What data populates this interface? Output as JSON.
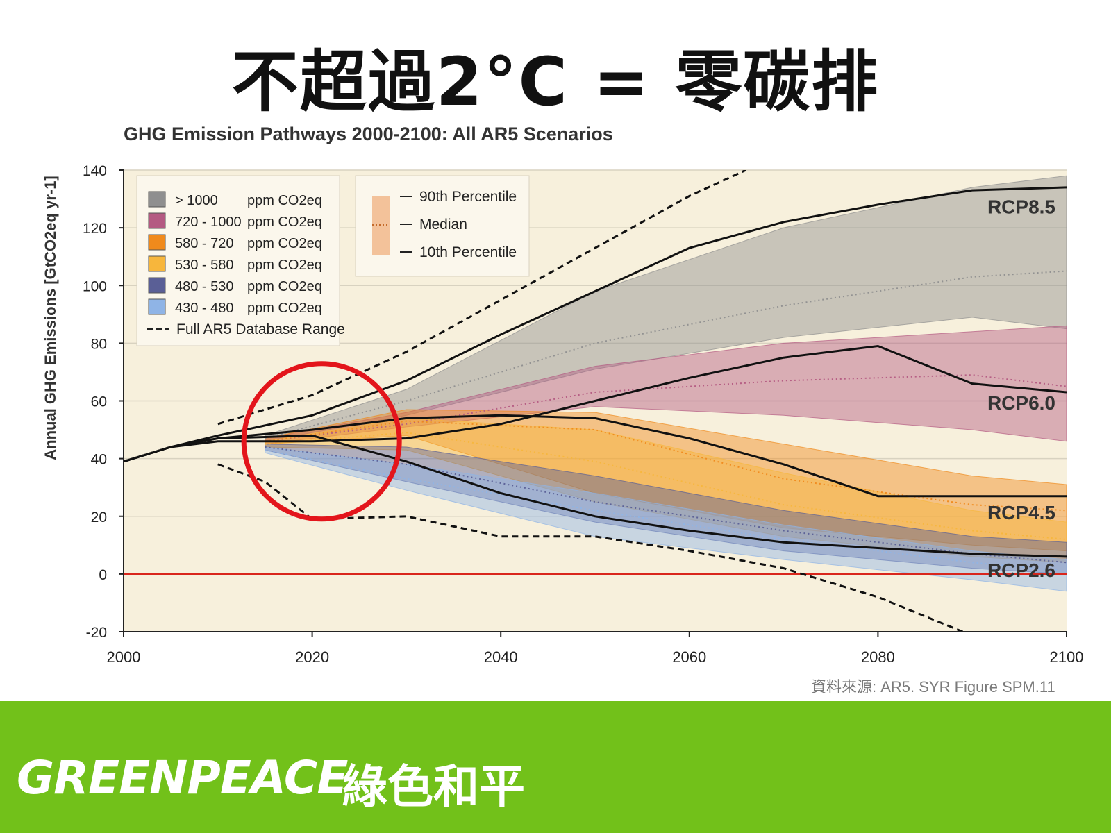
{
  "slide": {
    "title": "不超過2°C = 零碳排",
    "source": "資料來源: AR5. SYR Figure SPM.11"
  },
  "footer": {
    "brand": "GREENPEACE",
    "brand_cn": "綠色和平",
    "color": "#72c11a"
  },
  "chart_data": {
    "type": "area",
    "title": "GHG Emission Pathways 2000-2100: All AR5 Scenarios",
    "ylabel": "Annual GHG Emissions [GtCO2eq yr-1]",
    "xlabel": "",
    "xlim": [
      2000,
      2100
    ],
    "ylim": [
      -20,
      140
    ],
    "x_ticks": [
      2000,
      2020,
      2040,
      2060,
      2080,
      2100
    ],
    "y_ticks": [
      140,
      120,
      100,
      80,
      60,
      40,
      20,
      0,
      -20
    ],
    "legend_concentration": [
      {
        "range": "> 1000",
        "unit": "ppm CO2eq",
        "color": "#8f8f8f"
      },
      {
        "range": "720 - 1000",
        "unit": "ppm CO2eq",
        "color": "#b45a82"
      },
      {
        "range": "580 - 720",
        "unit": "ppm CO2eq",
        "color": "#f08a1c"
      },
      {
        "range": "530 - 580",
        "unit": "ppm CO2eq",
        "color": "#f7b63c"
      },
      {
        "range": "480 - 530",
        "unit": "ppm CO2eq",
        "color": "#5a5f96"
      },
      {
        "range": "430 - 480",
        "unit": "ppm CO2eq",
        "color": "#8fb4e6"
      }
    ],
    "legend_dashed": "Full AR5 Database Range",
    "legend_percentiles": [
      "90th Percentile",
      "Median",
      "10th Percentile"
    ],
    "bands": [
      {
        "range": "> 1000",
        "color": "#8f8f8f",
        "x": [
          2015,
          2030,
          2050,
          2070,
          2090,
          2100
        ],
        "upper": [
          48,
          64,
          98,
          120,
          134,
          138
        ],
        "median": [
          47,
          60,
          80,
          93,
          103,
          105
        ],
        "lower": [
          46,
          55,
          71,
          82,
          89,
          85
        ]
      },
      {
        "range": "720 - 1000",
        "color": "#b45a82",
        "x": [
          2015,
          2030,
          2050,
          2070,
          2090,
          2100
        ],
        "upper": [
          47,
          56,
          72,
          80,
          84,
          86
        ],
        "median": [
          46,
          52,
          63,
          67,
          69,
          65
        ],
        "lower": [
          45,
          51,
          58,
          55,
          50,
          46
        ]
      },
      {
        "range": "580 - 720",
        "color": "#f08a1c",
        "x": [
          2015,
          2030,
          2050,
          2070,
          2090,
          2100
        ],
        "upper": [
          47,
          57,
          56,
          45,
          34,
          31
        ],
        "median": [
          46,
          53,
          50,
          33,
          24,
          22
        ],
        "lower": [
          45,
          48,
          28,
          16,
          10,
          8
        ]
      },
      {
        "range": "530 - 580",
        "color": "#f7b63c",
        "x": [
          2015,
          2030,
          2050,
          2070,
          2090,
          2100
        ],
        "upper": [
          46,
          54,
          50,
          35,
          22,
          18
        ],
        "median": [
          45,
          49,
          39,
          24,
          15,
          12
        ],
        "lower": [
          44,
          43,
          25,
          13,
          6,
          4
        ]
      },
      {
        "range": "480 - 530",
        "color": "#5a5f96",
        "x": [
          2015,
          2030,
          2050,
          2070,
          2090,
          2100
        ],
        "upper": [
          45,
          44,
          34,
          22,
          13,
          11
        ],
        "median": [
          44,
          38,
          25,
          15,
          7,
          4
        ],
        "lower": [
          43,
          32,
          18,
          8,
          2,
          0
        ]
      },
      {
        "range": "430 - 480",
        "color": "#8fb4e6",
        "x": [
          2015,
          2030,
          2050,
          2070,
          2090,
          2100
        ],
        "upper": [
          44,
          38,
          28,
          17,
          8,
          5
        ],
        "median": [
          43,
          33,
          22,
          12,
          4,
          1
        ],
        "lower": [
          42,
          29,
          13,
          5,
          -2,
          -6
        ]
      }
    ],
    "rcp_lines": [
      {
        "name": "RCP8.5",
        "x": [
          2000,
          2005,
          2010,
          2020,
          2030,
          2040,
          2050,
          2060,
          2070,
          2080,
          2090,
          2100
        ],
        "y": [
          39,
          44,
          48,
          55,
          67,
          83,
          98,
          113,
          122,
          128,
          133,
          134
        ]
      },
      {
        "name": "RCP6.0",
        "x": [
          2000,
          2005,
          2010,
          2020,
          2030,
          2040,
          2050,
          2060,
          2070,
          2075,
          2080,
          2090,
          2100
        ],
        "y": [
          39,
          44,
          46,
          46,
          47,
          52,
          60,
          68,
          75,
          77,
          79,
          66,
          63
        ]
      },
      {
        "name": "RCP4.5",
        "x": [
          2000,
          2005,
          2010,
          2020,
          2030,
          2040,
          2050,
          2060,
          2070,
          2080,
          2090,
          2100
        ],
        "y": [
          39,
          44,
          47,
          50,
          54,
          55,
          54,
          47,
          38,
          27,
          27,
          27
        ]
      },
      {
        "name": "RCP2.6",
        "x": [
          2000,
          2005,
          2010,
          2020,
          2030,
          2040,
          2050,
          2060,
          2070,
          2080,
          2090,
          2100
        ],
        "y": [
          39,
          44,
          47,
          48,
          39,
          28,
          20,
          15,
          11,
          9,
          7,
          6
        ]
      }
    ],
    "database_range_upper": {
      "x": [
        2010,
        2020,
        2030,
        2040,
        2050,
        2060,
        2066
      ],
      "y": [
        52,
        62,
        77,
        95,
        113,
        131,
        140
      ]
    },
    "database_range_lower": {
      "x": [
        2010,
        2015,
        2020,
        2030,
        2040,
        2050,
        2060,
        2070,
        2080,
        2089
      ],
      "y": [
        38,
        32,
        19,
        20,
        13,
        13,
        8,
        2,
        -8,
        -20
      ]
    },
    "zero_line_color": "#d9261c",
    "highlight": {
      "shape": "circle",
      "color": "#e3151b",
      "center_x": 2021,
      "center_y": 46
    }
  }
}
